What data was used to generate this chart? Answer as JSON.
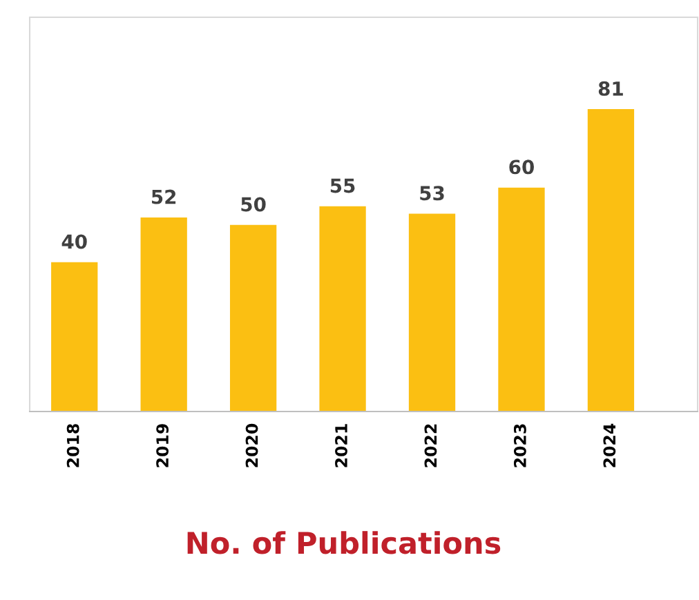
{
  "chart_data": {
    "type": "bar",
    "xlabel": "No. of Publications",
    "categories": [
      "2018",
      "2019",
      "2020",
      "2021",
      "2022",
      "2023",
      "2024"
    ],
    "values": [
      40,
      52,
      50,
      55,
      53,
      60,
      81
    ],
    "color": "#fbbf12",
    "data_labels": true,
    "grid": false,
    "legend": false
  }
}
